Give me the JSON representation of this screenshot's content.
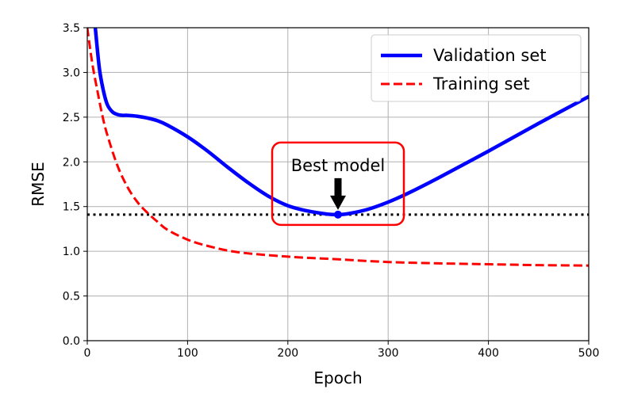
{
  "chart_data": {
    "type": "line",
    "xlabel": "Epoch",
    "ylabel": "RMSE",
    "xlim": [
      0,
      500
    ],
    "ylim": [
      0,
      3.5
    ],
    "xticks": [
      "0",
      "100",
      "200",
      "300",
      "400",
      "500"
    ],
    "yticks": [
      "0.0",
      "0.5",
      "1.0",
      "1.5",
      "2.0",
      "2.5",
      "3.0",
      "3.5"
    ],
    "grid": true,
    "legend_position": "top-right",
    "series": [
      {
        "name": "Validation set",
        "style": "solid",
        "color": "#0000ff",
        "x": [
          8,
          12,
          16,
          20,
          25,
          30,
          35,
          40,
          50,
          60,
          70,
          80,
          100,
          120,
          140,
          160,
          180,
          200,
          220,
          240,
          250,
          260,
          280,
          300,
          320,
          350,
          400,
          450,
          500
        ],
        "y": [
          3.5,
          3.05,
          2.8,
          2.64,
          2.56,
          2.53,
          2.52,
          2.52,
          2.51,
          2.49,
          2.46,
          2.41,
          2.28,
          2.12,
          1.94,
          1.77,
          1.62,
          1.51,
          1.45,
          1.415,
          1.41,
          1.42,
          1.47,
          1.55,
          1.65,
          1.82,
          2.12,
          2.43,
          2.73
        ]
      },
      {
        "name": "Training set",
        "style": "dashed",
        "color": "#ff0000",
        "x": [
          0,
          5,
          10,
          15,
          20,
          30,
          40,
          50,
          60,
          70,
          80,
          100,
          120,
          150,
          200,
          250,
          300,
          350,
          400,
          450,
          500
        ],
        "y": [
          3.5,
          3.1,
          2.8,
          2.52,
          2.3,
          1.96,
          1.72,
          1.55,
          1.43,
          1.33,
          1.24,
          1.13,
          1.06,
          0.99,
          0.94,
          0.91,
          0.88,
          0.865,
          0.855,
          0.845,
          0.84
        ]
      }
    ],
    "reference_line": {
      "y": 1.41,
      "style": "dotted",
      "color": "#000000"
    },
    "best_point": {
      "x": 250,
      "y": 1.41,
      "color": "#0000ff"
    },
    "annotation": {
      "text": "Best model",
      "x": 250,
      "y": 1.41,
      "box_color": "#ff0000"
    }
  }
}
